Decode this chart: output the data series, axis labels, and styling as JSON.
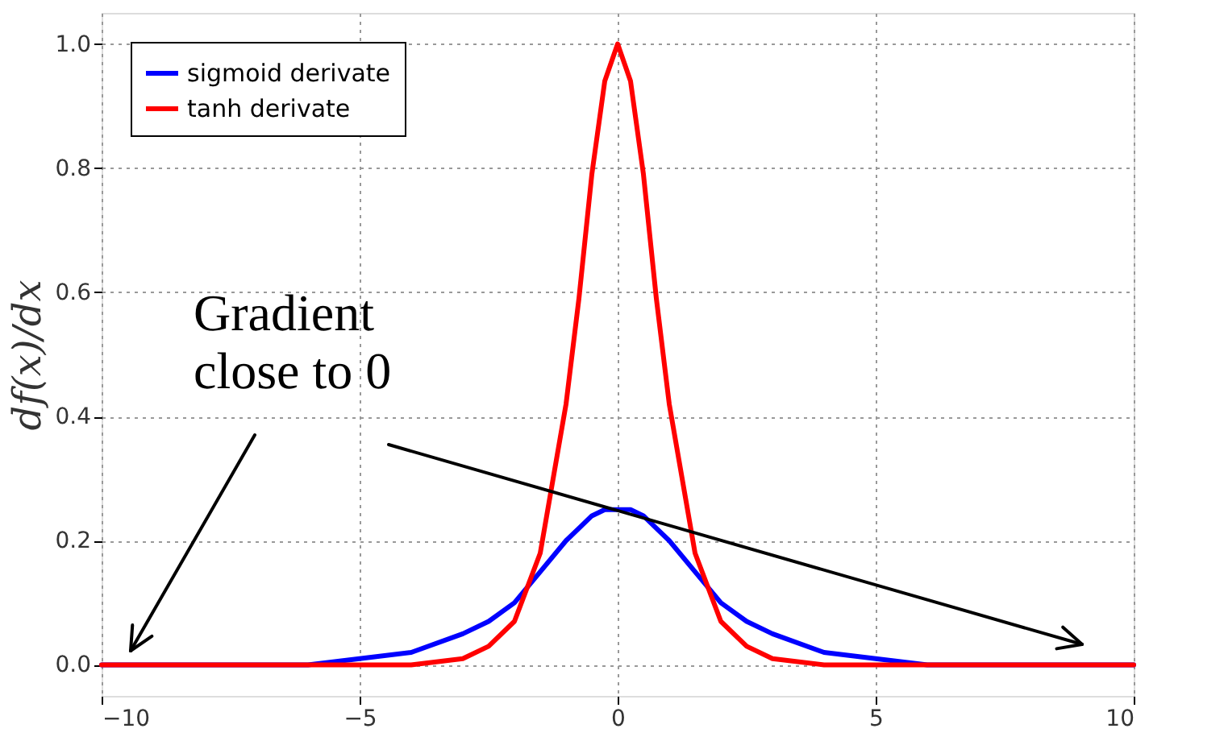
{
  "chart_data": {
    "type": "line",
    "ylabel": "df(x)/dx",
    "x": [
      -10,
      -8,
      -6,
      -5,
      -4,
      -3,
      -2.5,
      -2,
      -1.5,
      -1,
      -0.75,
      -0.5,
      -0.25,
      0,
      0.25,
      0.5,
      0.75,
      1,
      1.5,
      2,
      2.5,
      3,
      4,
      5,
      6,
      8,
      10
    ],
    "series": [
      {
        "name": "sigmoid derivate",
        "color": "#0000ff",
        "values": [
          0,
          0,
          0,
          0.01,
          0.02,
          0.05,
          0.07,
          0.1,
          0.15,
          0.2,
          0.22,
          0.24,
          0.25,
          0.25,
          0.25,
          0.24,
          0.22,
          0.2,
          0.15,
          0.1,
          0.07,
          0.05,
          0.02,
          0.01,
          0,
          0,
          0
        ]
      },
      {
        "name": "tanh derivate",
        "color": "#ff0000",
        "values": [
          0,
          0,
          0,
          0,
          0,
          0.01,
          0.03,
          0.07,
          0.18,
          0.42,
          0.59,
          0.79,
          0.94,
          1,
          0.94,
          0.79,
          0.59,
          0.42,
          0.18,
          0.07,
          0.03,
          0.01,
          0,
          0,
          0,
          0,
          0
        ]
      }
    ],
    "xlim": [
      -10,
      10
    ],
    "xticks": [
      {
        "value": -10,
        "label": "−10"
      },
      {
        "value": -5,
        "label": "−5"
      },
      0,
      5,
      10
    ],
    "ylim": [
      -0.05,
      1.05
    ],
    "yticks": [
      {
        "value": 0,
        "label": "0.0"
      },
      {
        "value": 0.2,
        "label": "0.2"
      },
      {
        "value": 0.4,
        "label": "0.4"
      },
      {
        "value": 0.6,
        "label": "0.6"
      },
      {
        "value": 0.8,
        "label": "0.8"
      },
      {
        "value": 1,
        "label": "1.0"
      }
    ],
    "annotations": [
      "Gradient\nclose to 0"
    ],
    "grid": true,
    "legend": "top left",
    "line_style": "solid",
    "marker": "none"
  }
}
